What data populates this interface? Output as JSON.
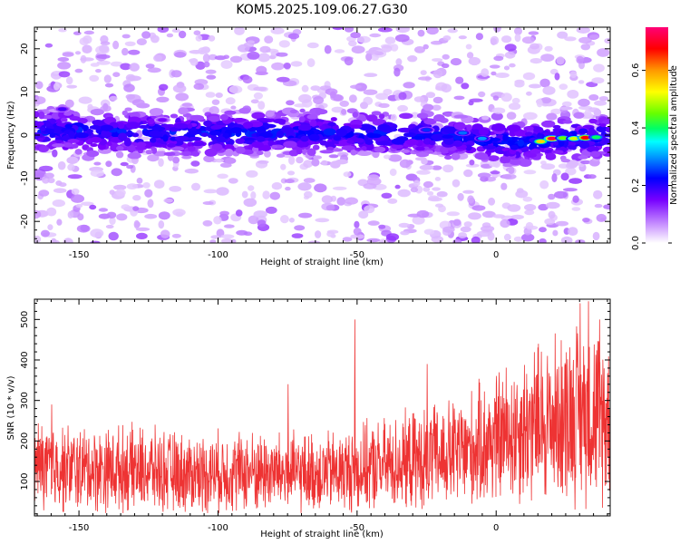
{
  "title": "KOM5.2025.109.06.27.G30",
  "colorbar": {
    "label": "Normalized spectral amplitude",
    "ticks": [
      "0.0",
      "0.2",
      "0.4",
      "0.6"
    ],
    "tick_values": [
      0.0,
      0.2,
      0.4,
      0.6
    ],
    "range": [
      0,
      0.75
    ]
  },
  "colors": {
    "snr_line": "#ee3333"
  },
  "chart_data": [
    {
      "type": "heatmap",
      "title": "KOM5.2025.109.06.27.G30",
      "xlabel": "Height of straight line (km)",
      "ylabel": "Frequency (Hz)",
      "xlim": [
        -166,
        41
      ],
      "ylim": [
        -25,
        25
      ],
      "x_ticks": [
        "-150",
        "-100",
        "-50",
        "0"
      ],
      "x_tick_values": [
        -150,
        -100,
        -50,
        0
      ],
      "y_ticks": [
        "-20",
        "-10",
        "0",
        "10",
        "20"
      ],
      "y_tick_values": [
        -20,
        -10,
        0,
        10,
        20
      ],
      "z_range": [
        0,
        0.75
      ],
      "grid": false,
      "description_of_values": "Main energy band centred near 0 Hz (-3 to +3 Hz) across all heights, with peak amplitude ~0.7 between 15 and 35 km near -1 Hz; weak scattered values elsewhere.",
      "band_centre_hz": [
        [
          -160,
          1.0
        ],
        [
          -140,
          0.8
        ],
        [
          -120,
          0.5
        ],
        [
          -100,
          0.3
        ],
        [
          -80,
          0.5
        ],
        [
          -60,
          0.3
        ],
        [
          -40,
          0.2
        ],
        [
          -20,
          0.0
        ],
        [
          0,
          -1.5
        ],
        [
          10,
          -2.0
        ],
        [
          20,
          -1.0
        ],
        [
          30,
          -0.6
        ],
        [
          40,
          -0.5
        ]
      ],
      "peak_points": [
        {
          "x": 16,
          "y": -1.5,
          "z": 0.55
        },
        {
          "x": 20,
          "y": -0.8,
          "z": 0.72
        },
        {
          "x": 24,
          "y": -0.7,
          "z": 0.45
        },
        {
          "x": 28,
          "y": -0.8,
          "z": 0.5
        },
        {
          "x": 32,
          "y": -0.6,
          "z": 0.68
        },
        {
          "x": 36,
          "y": -0.5,
          "z": 0.4
        },
        {
          "x": -5,
          "y": -0.8,
          "z": 0.3
        },
        {
          "x": -12,
          "y": 0.5,
          "z": 0.28
        },
        {
          "x": -25,
          "y": 1.2,
          "z": 0.25
        },
        {
          "x": -156,
          "y": 6.0,
          "z": 0.18
        },
        {
          "x": -120,
          "y": 3.5,
          "z": 0.15
        }
      ]
    },
    {
      "type": "line",
      "xlabel": "Height of straight line (km)",
      "ylabel": "SNR (10 * v/v)",
      "xlim": [
        -166,
        41
      ],
      "ylim": [
        15,
        550
      ],
      "x_ticks": [
        "-150",
        "-100",
        "-50",
        "0"
      ],
      "x_tick_values": [
        -150,
        -100,
        -50,
        0
      ],
      "y_ticks": [
        "100",
        "200",
        "300",
        "400",
        "500"
      ],
      "y_tick_values": [
        100,
        200,
        300,
        400,
        500
      ],
      "grid": false,
      "series": [
        {
          "color": "#ee3333",
          "trend": [
            [
              -166,
              140
            ],
            [
              -150,
              130
            ],
            [
              -130,
              130
            ],
            [
              -110,
              120
            ],
            [
              -90,
              125
            ],
            [
              -70,
              120
            ],
            [
              -55,
              125
            ],
            [
              -40,
              140
            ],
            [
              -25,
              155
            ],
            [
              -10,
              175
            ],
            [
              0,
              205
            ],
            [
              10,
              235
            ],
            [
              20,
              250
            ],
            [
              30,
              280
            ],
            [
              41,
              260
            ]
          ],
          "notable_peaks": [
            [
              -51,
              500
            ],
            [
              -160,
              290
            ],
            [
              -75,
              340
            ],
            [
              -25,
              390
            ],
            [
              15,
              440
            ],
            [
              30,
              540
            ],
            [
              33,
              545
            ],
            [
              37,
              500
            ]
          ]
        }
      ]
    }
  ]
}
